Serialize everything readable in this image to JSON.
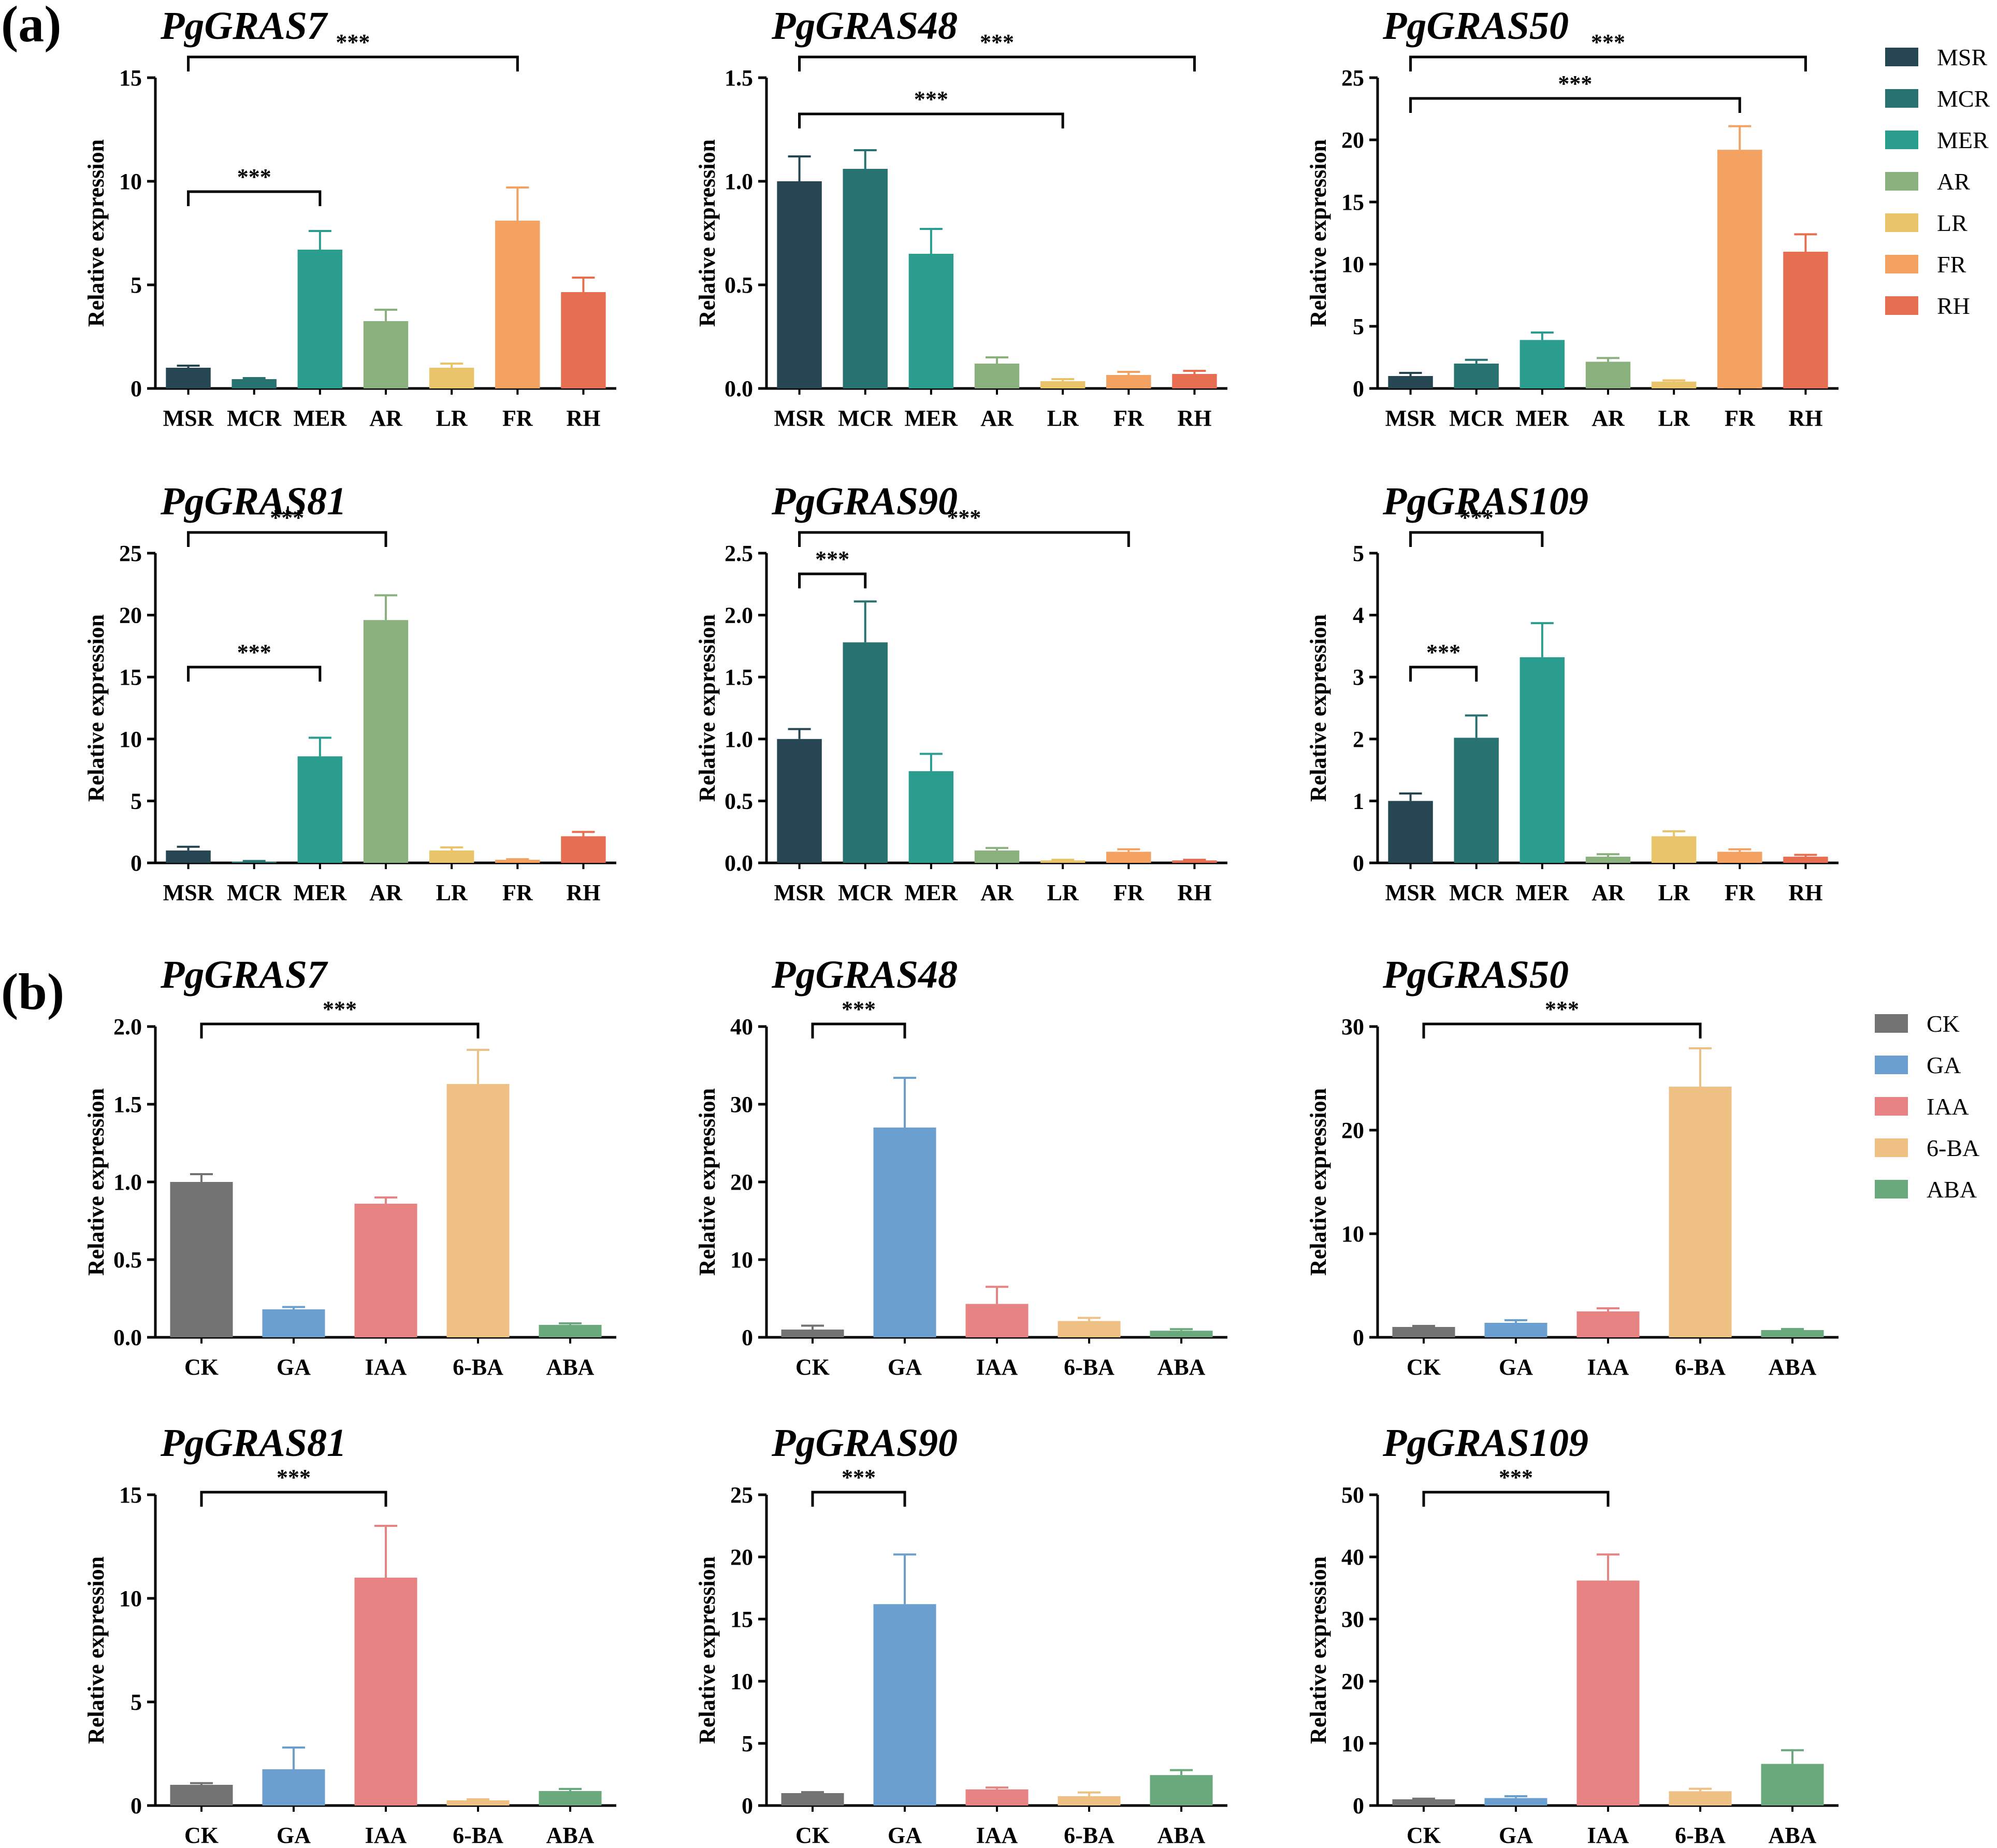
{
  "figure": {
    "panel_labels": [
      "(a)",
      "(b)"
    ],
    "ylabel": "Relative expression",
    "significance_label": "***"
  },
  "colors": {
    "MSR": "#264653",
    "MCR": "#287271",
    "MER": "#2a9d8f",
    "AR": "#8ab17d",
    "LR": "#e9c46a",
    "FR": "#f4a261",
    "RH": "#e76f51",
    "CK": "#737373",
    "GA": "#6a9fcf",
    "IAA": "#e78483",
    "6-BA": "#efc084",
    "ABA": "#6aa97b"
  },
  "legends": [
    {
      "panel": "a",
      "entries": [
        "MSR",
        "MCR",
        "MER",
        "AR",
        "LR",
        "FR",
        "RH"
      ]
    },
    {
      "panel": "b",
      "entries": [
        "CK",
        "GA",
        "IAA",
        "6-BA",
        "ABA"
      ]
    }
  ],
  "chart_data": [
    {
      "type": "bar",
      "panel": "a",
      "title": "PgGRAS7",
      "xlabel": "",
      "ylabel": "Relative expression",
      "categories": [
        "MSR",
        "MCR",
        "MER",
        "AR",
        "LR",
        "FR",
        "RH"
      ],
      "values": [
        1.0,
        0.45,
        6.7,
        3.25,
        1.0,
        8.1,
        4.65
      ],
      "errors": [
        0.1,
        0.05,
        0.9,
        0.55,
        0.2,
        1.6,
        0.7
      ],
      "ylim": [
        0,
        15
      ],
      "yticks": [
        0,
        5,
        10,
        15
      ],
      "ytick_labels": [
        "0",
        "5",
        "10",
        "15"
      ],
      "brackets": [
        {
          "from": "MSR",
          "to": "MER",
          "label": "***"
        },
        {
          "from": "MSR",
          "to": "FR",
          "label": "***"
        }
      ]
    },
    {
      "type": "bar",
      "panel": "a",
      "title": "PgGRAS48",
      "xlabel": "",
      "ylabel": "Relative expression",
      "categories": [
        "MSR",
        "MCR",
        "MER",
        "AR",
        "LR",
        "FR",
        "RH"
      ],
      "values": [
        1.0,
        1.06,
        0.65,
        0.12,
        0.035,
        0.065,
        0.07
      ],
      "errors": [
        0.12,
        0.09,
        0.12,
        0.03,
        0.01,
        0.015,
        0.015
      ],
      "ylim": [
        0,
        1.5
      ],
      "yticks": [
        0,
        0.5,
        1.0,
        1.5
      ],
      "ytick_labels": [
        "0.0",
        "0.5",
        "1.0",
        "1.5"
      ],
      "brackets": [
        {
          "from": "MSR",
          "to": "LR",
          "label": "***"
        },
        {
          "from": "MSR",
          "to": "RH",
          "label": "***"
        }
      ]
    },
    {
      "type": "bar",
      "panel": "a",
      "title": "PgGRAS50",
      "xlabel": "",
      "ylabel": "Relative expression",
      "categories": [
        "MSR",
        "MCR",
        "MER",
        "AR",
        "LR",
        "FR",
        "RH"
      ],
      "values": [
        1.0,
        2.0,
        3.9,
        2.15,
        0.55,
        19.2,
        11.0
      ],
      "errors": [
        0.25,
        0.3,
        0.6,
        0.3,
        0.1,
        1.9,
        1.4
      ],
      "ylim": [
        0,
        25
      ],
      "yticks": [
        0,
        5,
        10,
        15,
        20,
        25
      ],
      "ytick_labels": [
        "0",
        "5",
        "10",
        "15",
        "20",
        "25"
      ],
      "brackets": [
        {
          "from": "MSR",
          "to": "FR",
          "label": "***"
        },
        {
          "from": "MSR",
          "to": "RH",
          "label": "***"
        }
      ]
    },
    {
      "type": "bar",
      "panel": "a",
      "title": "PgGRAS81",
      "xlabel": "",
      "ylabel": "Relative expression",
      "categories": [
        "MSR",
        "MCR",
        "MER",
        "AR",
        "LR",
        "FR",
        "RH"
      ],
      "values": [
        1.0,
        0.1,
        8.6,
        19.6,
        1.0,
        0.25,
        2.15
      ],
      "errors": [
        0.3,
        0.05,
        1.5,
        2.0,
        0.25,
        0.05,
        0.35
      ],
      "ylim": [
        0,
        25
      ],
      "yticks": [
        0,
        5,
        10,
        15,
        20,
        25
      ],
      "ytick_labels": [
        "0",
        "5",
        "10",
        "15",
        "20",
        "25"
      ],
      "brackets": [
        {
          "from": "MSR",
          "to": "MER",
          "label": "***"
        },
        {
          "from": "MSR",
          "to": "AR",
          "label": "***"
        }
      ]
    },
    {
      "type": "bar",
      "panel": "a",
      "title": "PgGRAS90",
      "xlabel": "",
      "ylabel": "Relative expression",
      "categories": [
        "MSR",
        "MCR",
        "MER",
        "AR",
        "LR",
        "FR",
        "RH"
      ],
      "values": [
        1.0,
        1.78,
        0.74,
        0.1,
        0.02,
        0.09,
        0.02
      ],
      "errors": [
        0.08,
        0.33,
        0.14,
        0.02,
        0.005,
        0.02,
        0.005
      ],
      "ylim": [
        0,
        2.5
      ],
      "yticks": [
        0,
        0.5,
        1.0,
        1.5,
        2.0,
        2.5
      ],
      "ytick_labels": [
        "0.0",
        "0.5",
        "1.0",
        "1.5",
        "2.0",
        "2.5"
      ],
      "brackets": [
        {
          "from": "MSR",
          "to": "MCR",
          "label": "***"
        },
        {
          "from": "MSR",
          "to": "FR",
          "label": "***"
        }
      ]
    },
    {
      "type": "bar",
      "panel": "a",
      "title": "PgGRAS109",
      "xlabel": "",
      "ylabel": "Relative expression",
      "categories": [
        "MSR",
        "MCR",
        "MER",
        "AR",
        "LR",
        "FR",
        "RH"
      ],
      "values": [
        1.0,
        2.02,
        3.32,
        0.1,
        0.43,
        0.18,
        0.1
      ],
      "errors": [
        0.12,
        0.36,
        0.55,
        0.04,
        0.08,
        0.04,
        0.03
      ],
      "ylim": [
        0,
        5
      ],
      "yticks": [
        0,
        1,
        2,
        3,
        4,
        5
      ],
      "ytick_labels": [
        "0",
        "1",
        "2",
        "3",
        "4",
        "5"
      ],
      "brackets": [
        {
          "from": "MSR",
          "to": "MCR",
          "label": "***"
        },
        {
          "from": "MSR",
          "to": "MER",
          "label": "***"
        }
      ]
    },
    {
      "type": "bar",
      "panel": "b",
      "title": "PgGRAS7",
      "xlabel": "",
      "ylabel": "Relative expression",
      "categories": [
        "CK",
        "GA",
        "IAA",
        "6-BA",
        "ABA"
      ],
      "values": [
        1.0,
        0.18,
        0.86,
        1.63,
        0.08
      ],
      "errors": [
        0.05,
        0.015,
        0.04,
        0.22,
        0.01
      ],
      "ylim": [
        0,
        2.0
      ],
      "yticks": [
        0,
        0.5,
        1.0,
        1.5,
        2.0
      ],
      "ytick_labels": [
        "0.0",
        "0.5",
        "1.0",
        "1.5",
        "2.0"
      ],
      "brackets": [
        {
          "from": "CK",
          "to": "6-BA",
          "label": "***"
        }
      ]
    },
    {
      "type": "bar",
      "panel": "b",
      "title": "PgGRAS48",
      "xlabel": "",
      "ylabel": "Relative expression",
      "categories": [
        "CK",
        "GA",
        "IAA",
        "6-BA",
        "ABA"
      ],
      "values": [
        1.0,
        27.0,
        4.3,
        2.1,
        0.85
      ],
      "errors": [
        0.5,
        6.4,
        2.2,
        0.4,
        0.2
      ],
      "ylim": [
        0,
        40
      ],
      "yticks": [
        0,
        10,
        20,
        30,
        40
      ],
      "ytick_labels": [
        "0",
        "10",
        "20",
        "30",
        "40"
      ],
      "brackets": [
        {
          "from": "CK",
          "to": "GA",
          "label": "***"
        }
      ]
    },
    {
      "type": "bar",
      "panel": "b",
      "title": "PgGRAS50",
      "xlabel": "",
      "ylabel": "Relative expression",
      "categories": [
        "CK",
        "GA",
        "IAA",
        "6-BA",
        "ABA"
      ],
      "values": [
        1.0,
        1.4,
        2.5,
        24.2,
        0.7
      ],
      "errors": [
        0.1,
        0.25,
        0.3,
        3.7,
        0.1
      ],
      "ylim": [
        0,
        30
      ],
      "yticks": [
        0,
        10,
        20,
        30
      ],
      "ytick_labels": [
        "0",
        "10",
        "20",
        "30"
      ],
      "brackets": [
        {
          "from": "CK",
          "to": "6-BA",
          "label": "***"
        }
      ]
    },
    {
      "type": "bar",
      "panel": "b",
      "title": "PgGRAS81",
      "xlabel": "",
      "ylabel": "Relative expression",
      "categories": [
        "CK",
        "GA",
        "IAA",
        "6-BA",
        "ABA"
      ],
      "values": [
        1.0,
        1.75,
        11.0,
        0.25,
        0.7
      ],
      "errors": [
        0.08,
        1.05,
        2.5,
        0.05,
        0.1
      ],
      "ylim": [
        0,
        15
      ],
      "yticks": [
        0,
        5,
        10,
        15
      ],
      "ytick_labels": [
        "0",
        "5",
        "10",
        "15"
      ],
      "brackets": [
        {
          "from": "CK",
          "to": "IAA",
          "label": "***"
        }
      ]
    },
    {
      "type": "bar",
      "panel": "b",
      "title": "PgGRAS90",
      "xlabel": "",
      "ylabel": "Relative expression",
      "categories": [
        "CK",
        "GA",
        "IAA",
        "6-BA",
        "ABA"
      ],
      "values": [
        1.0,
        16.2,
        1.3,
        0.75,
        2.45
      ],
      "errors": [
        0.08,
        4.0,
        0.15,
        0.3,
        0.4
      ],
      "ylim": [
        0,
        25
      ],
      "yticks": [
        0,
        5,
        10,
        15,
        20,
        25
      ],
      "ytick_labels": [
        "0",
        "5",
        "10",
        "15",
        "20",
        "25"
      ],
      "brackets": [
        {
          "from": "CK",
          "to": "GA",
          "label": "***"
        }
      ]
    },
    {
      "type": "bar",
      "panel": "b",
      "title": "PgGRAS109",
      "xlabel": "",
      "ylabel": "Relative expression",
      "categories": [
        "CK",
        "GA",
        "IAA",
        "6-BA",
        "ABA"
      ],
      "values": [
        1.0,
        1.2,
        36.2,
        2.3,
        6.7
      ],
      "errors": [
        0.1,
        0.3,
        4.2,
        0.4,
        2.2
      ],
      "ylim": [
        0,
        50
      ],
      "yticks": [
        0,
        10,
        20,
        30,
        40,
        50
      ],
      "ytick_labels": [
        "0",
        "10",
        "20",
        "30",
        "40",
        "50"
      ],
      "brackets": [
        {
          "from": "CK",
          "to": "IAA",
          "label": "***"
        }
      ]
    }
  ]
}
